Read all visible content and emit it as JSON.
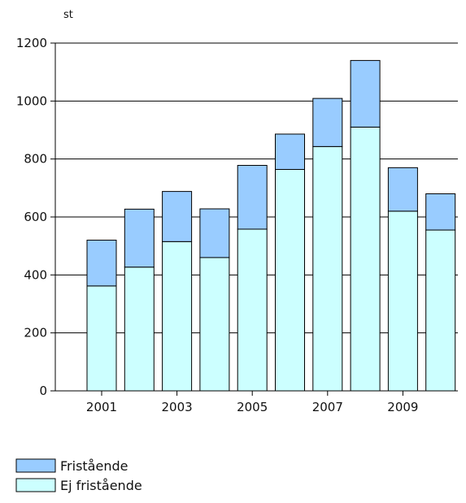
{
  "chart_data": {
    "type": "bar",
    "stacked": true,
    "unit_label": "st",
    "categories": [
      "2001",
      "2002",
      "2003",
      "2004",
      "2005",
      "2006",
      "2007",
      "2008",
      "2009",
      "2010"
    ],
    "x_tick_labels": [
      "2001",
      "2003",
      "2005",
      "2007",
      "2009"
    ],
    "series": [
      {
        "name": "Ej fristående",
        "color": "#ccffff",
        "values": [
          362,
          427,
          515,
          460,
          558,
          764,
          843,
          910,
          620,
          555
        ]
      },
      {
        "name": "Fristående",
        "color": "#99ccff",
        "values": [
          158,
          200,
          173,
          168,
          220,
          122,
          166,
          230,
          150,
          125
        ]
      }
    ],
    "ylim": [
      0,
      1200
    ],
    "y_ticks": [
      0,
      200,
      400,
      600,
      800,
      1000,
      1200
    ],
    "grid": true,
    "legend_position": "bottom-left",
    "legend_order": [
      "Fristående",
      "Ej fristående"
    ]
  }
}
